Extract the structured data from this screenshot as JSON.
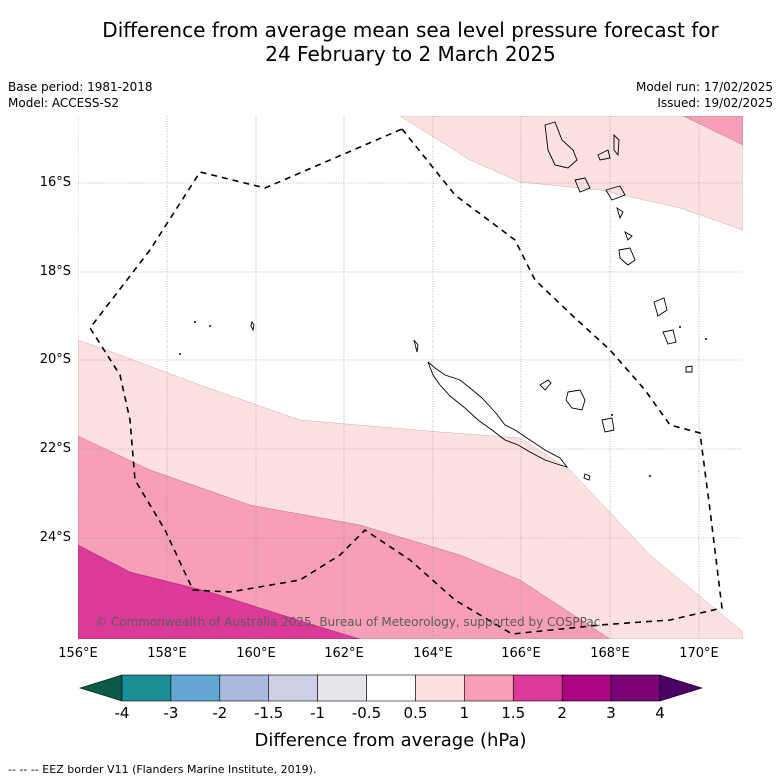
{
  "title_line1": "Difference from average mean sea level pressure forecast for",
  "title_line2": "24 February to 2 March 2025",
  "meta": {
    "base_period": "Base period: 1981-2018",
    "model": "Model: ACCESS-S2",
    "model_run": "Model run: 17/02/2025",
    "issued": "Issued: 19/02/2025"
  },
  "map": {
    "lon_labels": [
      "156°E",
      "158°E",
      "160°E",
      "162°E",
      "164°E",
      "166°E",
      "168°E",
      "170°E"
    ],
    "lat_labels": [
      "16°S",
      "18°S",
      "20°S",
      "22°S",
      "24°S"
    ],
    "copyright": "© Commonwealth of Australia 2025, Bureau of Meteorology, supported by COSPPac"
  },
  "colorbar": {
    "tick_labels": [
      "-4",
      "-3",
      "-2",
      "-1.5",
      "-1",
      "-0.5",
      "0.5",
      "1",
      "1.5",
      "2",
      "3",
      "4"
    ],
    "colors": [
      "#1b6e67",
      "#1a8f96",
      "#63a6d1",
      "#a8bbdc",
      "#cfd0e6",
      "#e8e6ec",
      "#ffffff",
      "#fde0e0",
      "#f79fb6",
      "#dc3a9b",
      "#ad0480",
      "#7a0177"
    ],
    "under_color": "#0a5c4a",
    "over_color": "#4a0066",
    "label": "Difference from average (hPa)"
  },
  "legend_note": "--  --  -- EEZ border V11 (Flanders Marine Institute, 2019)."
}
